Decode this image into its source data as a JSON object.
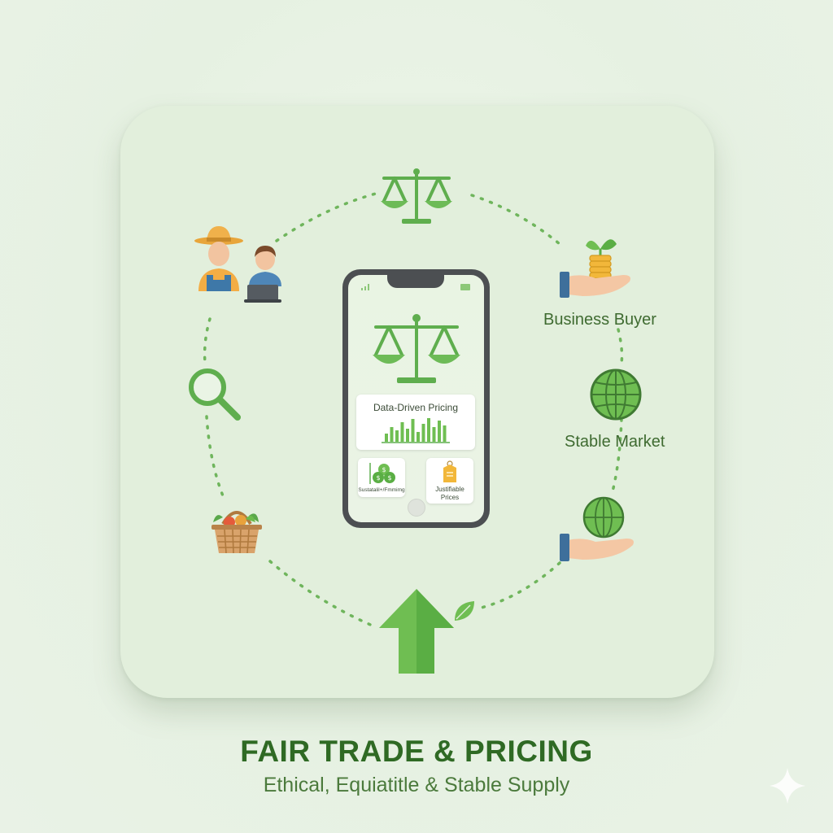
{
  "diagram": {
    "nodes": [
      {
        "id": "scale",
        "icon": "balance-scale-icon"
      },
      {
        "id": "farmer-and-worker",
        "icon": "farmer-and-worker-icon"
      },
      {
        "id": "search",
        "icon": "magnifier-icon"
      },
      {
        "id": "basket",
        "icon": "produce-basket-icon"
      },
      {
        "id": "growth",
        "icon": "up-arrow-icon"
      },
      {
        "id": "business-buyer",
        "label": "Business Buyer",
        "icon": "hand-with-coins-plant-icon"
      },
      {
        "id": "stable-market",
        "label": "Stable Market",
        "icon": "globe-icon"
      },
      {
        "id": "global-hand",
        "icon": "hand-with-globe-icon"
      }
    ]
  },
  "phone": {
    "panel_main": {
      "label": "Data-Driven Pricing"
    },
    "panel_left": {
      "label": "Sustatalil+/Fmmimg"
    },
    "panel_right": {
      "label": "Justifiable\nPrices"
    }
  },
  "footer": {
    "title": "FAIR TRADE & PRICING",
    "subtitle": "Ethical, Equiatitle & Stable Supply"
  },
  "colors": {
    "primary_green": "#5fae4e",
    "dark_green": "#2f6a24",
    "card_bg": "#e2efdc"
  }
}
